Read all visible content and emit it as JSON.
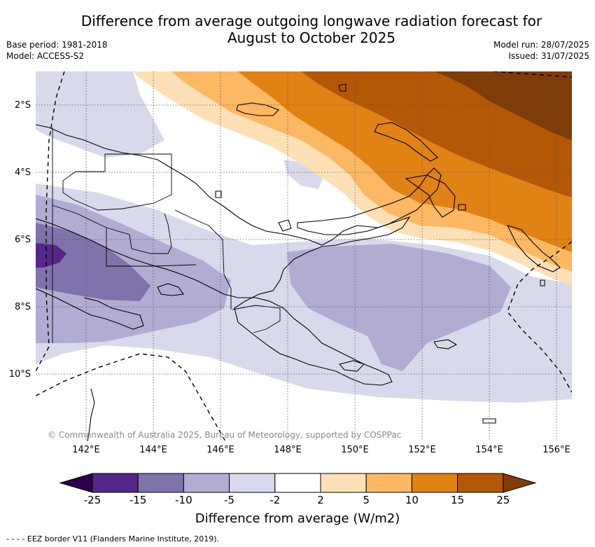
{
  "title_line1": "Difference from average outgoing longwave radiation forecast for",
  "title_line2": "August to October 2025",
  "meta_left": {
    "base_period": "Base period: 1981-2018",
    "model": "Model: ACCESS-S2"
  },
  "meta_right": {
    "model_run": "Model run: 28/07/2025",
    "issued": "Issued: 31/07/2025"
  },
  "lat_labels": [
    "2°S",
    "4°S",
    "6°S",
    "8°S",
    "10°S"
  ],
  "lon_labels": [
    "142°E",
    "144°E",
    "146°E",
    "148°E",
    "150°E",
    "152°E",
    "154°E",
    "156°E"
  ],
  "copyright": "© Commonwealth of Australia 2025, Bureau of Meteorology, supported by COSPPac",
  "colorbar": {
    "ticks": [
      "-25",
      "-15",
      "-10",
      "-5",
      "-2",
      "2",
      "5",
      "10",
      "15",
      "25"
    ],
    "colors": [
      "#2d004b",
      "#542788",
      "#8073ac",
      "#b2abd2",
      "#d8daeb",
      "#ffffff",
      "#fee0b6",
      "#fdb863",
      "#e08214",
      "#b35806",
      "#7f3b08"
    ],
    "label": "Difference from average (W/m2)"
  },
  "footnote": "- -  - - EEZ border V11 (Flanders Marine Institute, 2019)."
}
